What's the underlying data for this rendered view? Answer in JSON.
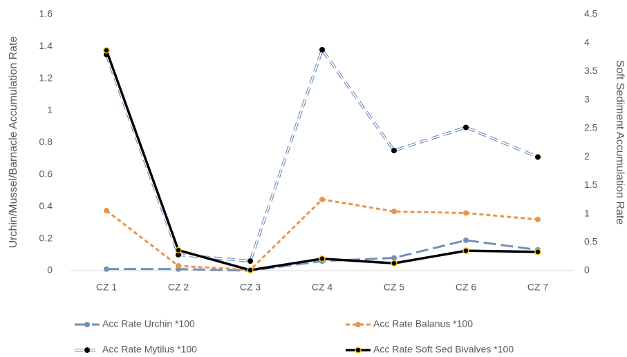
{
  "chart_data": {
    "type": "line",
    "categories": [
      "CZ 1",
      "CZ 2",
      "CZ 3",
      "CZ 4",
      "CZ 5",
      "CZ 6",
      "CZ 7"
    ],
    "y_label": "Urchin/Mussel/Barnacle Accumulation Rate",
    "y2_label": "Soft Sediment Accumulation Rate",
    "ylim": [
      0,
      1.6
    ],
    "yticks": [
      0,
      0.2,
      0.4,
      0.6,
      0.8,
      1,
      1.2,
      1.4,
      1.6
    ],
    "y2lim": [
      0,
      4.5
    ],
    "y2ticks": [
      0,
      0.5,
      1,
      1.5,
      2,
      2.5,
      3,
      3.5,
      4,
      4.5
    ],
    "grid": false,
    "legend": "bottom",
    "series": [
      {
        "name": "Acc Rate Urchin *100",
        "color": "#6f8fbd",
        "marker_color": "#6f8fbd",
        "dash": "long",
        "values": [
          0.01,
          0.01,
          0.0,
          0.06,
          0.08,
          0.19,
          0.13
        ]
      },
      {
        "name": "Acc Rate Balanus *100",
        "color": "#e8954a",
        "marker_color": "#e8954a",
        "dash": "short",
        "values": [
          0.375,
          0.03,
          0.005,
          0.445,
          0.37,
          0.36,
          0.32
        ]
      },
      {
        "name": "Acc Rate Mytilus *100",
        "color": "#5b80b6",
        "marker_color": "#000000",
        "dash": "double",
        "values": [
          1.35,
          0.1,
          0.06,
          1.38,
          0.75,
          0.895,
          0.71
        ]
      },
      {
        "name": "Acc Rate Soft Sed Bivalves *100",
        "color": "#000000",
        "marker_color": "#f2c200",
        "dash": "solid",
        "axis": "y2",
        "values": [
          3.87,
          0.36,
          0.01,
          0.21,
          0.13,
          0.35,
          0.33
        ]
      }
    ]
  }
}
